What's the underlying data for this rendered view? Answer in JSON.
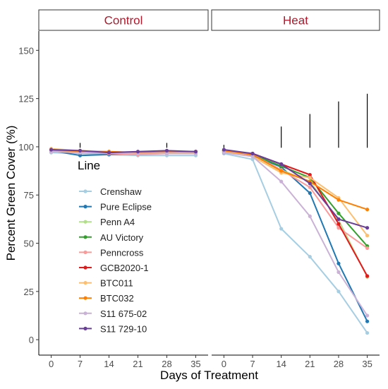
{
  "chart_data": {
    "type": "line",
    "xlabel": "Days of Treatment",
    "ylabel": "Percent Green Cover (%)",
    "ylim": [
      -8,
      160
    ],
    "yticks": [
      0,
      25,
      50,
      75,
      100,
      125,
      150
    ],
    "xlim": [
      -3,
      38
    ],
    "xticks": [
      0,
      7,
      14,
      21,
      28,
      35
    ],
    "grid": false,
    "legend": {
      "title": "Line",
      "placement": "inside-left"
    },
    "panels": [
      {
        "label": "Control",
        "series": [
          {
            "name": "Crenshaw",
            "color": "#a6cee3",
            "x": [
              0,
              7,
              14,
              21,
              28,
              35
            ],
            "values": [
              97,
              96.5,
              96,
              95.5,
              95.5,
              95.5
            ]
          },
          {
            "name": "Pure Eclipse",
            "color": "#1f78b4",
            "x": [
              0,
              7,
              14,
              21,
              28,
              35
            ],
            "values": [
              98,
              95.5,
              96,
              96.5,
              97,
              97
            ]
          },
          {
            "name": "Penn A4",
            "color": "#b2df8a",
            "x": [
              0,
              7,
              14,
              21,
              28,
              35
            ],
            "values": [
              98.5,
              97.5,
              97,
              97,
              97.5,
              97
            ]
          },
          {
            "name": "AU Victory",
            "color": "#33a02c",
            "x": [
              0,
              7,
              14,
              21,
              28,
              35
            ],
            "values": [
              98,
              97.5,
              97,
              97,
              97.5,
              97.5
            ]
          },
          {
            "name": "Penncross",
            "color": "#fb9a99",
            "x": [
              0,
              7,
              14,
              21,
              28,
              35
            ],
            "values": [
              97.5,
              97,
              96.5,
              96,
              96.5,
              96.5
            ]
          },
          {
            "name": "GCB2020-1",
            "color": "#e31a1c",
            "x": [
              0,
              7,
              14,
              21,
              28,
              35
            ],
            "values": [
              98,
              97.5,
              97,
              97,
              97,
              97
            ]
          },
          {
            "name": "BTC011",
            "color": "#fdbf6f",
            "x": [
              0,
              7,
              14,
              21,
              28,
              35
            ],
            "values": [
              99,
              98,
              97.5,
              97,
              97,
              97
            ]
          },
          {
            "name": "BTC032",
            "color": "#ff7f00",
            "x": [
              0,
              7,
              14,
              21,
              28,
              35
            ],
            "values": [
              98,
              97.5,
              97.5,
              97,
              97.5,
              97.5
            ]
          },
          {
            "name": "S11 675-02",
            "color": "#cab2d6",
            "x": [
              0,
              7,
              14,
              21,
              28,
              35
            ],
            "values": [
              97.5,
              97,
              97,
              96.5,
              96.5,
              96.5
            ]
          },
          {
            "name": "S11 729-10",
            "color": "#6a3d9a",
            "x": [
              0,
              7,
              14,
              21,
              28,
              35
            ],
            "values": [
              98.5,
              98,
              97,
              97.5,
              98,
              97.5
            ]
          }
        ],
        "sig_bars": [
          {
            "x": 7,
            "low": 99.5,
            "high": 102
          },
          {
            "x": 28,
            "low": 99.5,
            "high": 102
          }
        ]
      },
      {
        "label": "Heat",
        "series": [
          {
            "name": "Crenshaw",
            "color": "#a6cee3",
            "x": [
              0,
              7,
              14,
              21,
              28,
              35
            ],
            "values": [
              96.5,
              93.5,
              57.5,
              43,
              25,
              3.5
            ]
          },
          {
            "name": "Pure Eclipse",
            "color": "#1f78b4",
            "x": [
              0,
              7,
              14,
              21,
              28,
              35
            ],
            "values": [
              97,
              95.5,
              89.5,
              76,
              39.5,
              9.5
            ]
          },
          {
            "name": "Penn A4",
            "color": "#b2df8a",
            "x": [
              0,
              7,
              14,
              21,
              28,
              35
            ],
            "values": [
              98,
              96,
              88,
              82,
              62,
              32.5
            ]
          },
          {
            "name": "AU Victory",
            "color": "#33a02c",
            "x": [
              0,
              7,
              14,
              21,
              28,
              35
            ],
            "values": [
              98,
              96,
              90,
              84,
              65.5,
              48.5
            ]
          },
          {
            "name": "Penncross",
            "color": "#fb9a99",
            "x": [
              0,
              7,
              14,
              21,
              28,
              35
            ],
            "values": [
              97.5,
              96,
              88,
              79,
              58,
              47.5
            ]
          },
          {
            "name": "GCB2020-1",
            "color": "#e31a1c",
            "x": [
              0,
              7,
              14,
              21,
              28,
              35
            ],
            "values": [
              98,
              96.5,
              91,
              85.5,
              60,
              33
            ]
          },
          {
            "name": "BTC011",
            "color": "#fdbf6f",
            "x": [
              0,
              7,
              14,
              21,
              28,
              35
            ],
            "values": [
              97.5,
              95,
              86.5,
              84,
              73.5,
              54
            ]
          },
          {
            "name": "BTC032",
            "color": "#ff7f00",
            "x": [
              0,
              7,
              14,
              21,
              28,
              35
            ],
            "values": [
              98,
              96,
              87.5,
              82,
              72.5,
              67.5
            ]
          },
          {
            "name": "S11 675-02",
            "color": "#cab2d6",
            "x": [
              0,
              7,
              14,
              21,
              28,
              35
            ],
            "values": [
              97,
              95,
              82,
              64,
              35,
              12.5
            ]
          },
          {
            "name": "S11 729-10",
            "color": "#6a3d9a",
            "x": [
              0,
              7,
              14,
              21,
              28,
              35
            ],
            "values": [
              98.5,
              96.5,
              91,
              81,
              62.5,
              58
            ]
          }
        ],
        "sig_bars": [
          {
            "x": 0,
            "low": 99.5,
            "high": 101
          },
          {
            "x": 14,
            "low": 99.5,
            "high": 110.5
          },
          {
            "x": 21,
            "low": 99.5,
            "high": 117
          },
          {
            "x": 28,
            "low": 99.5,
            "high": 123.5
          },
          {
            "x": 35,
            "low": 99.5,
            "high": 127.5
          }
        ]
      }
    ]
  },
  "style": {
    "strip_text_color": "#b2182b",
    "axis_text_color": "#4d4d4d",
    "title_color": "#000000"
  }
}
